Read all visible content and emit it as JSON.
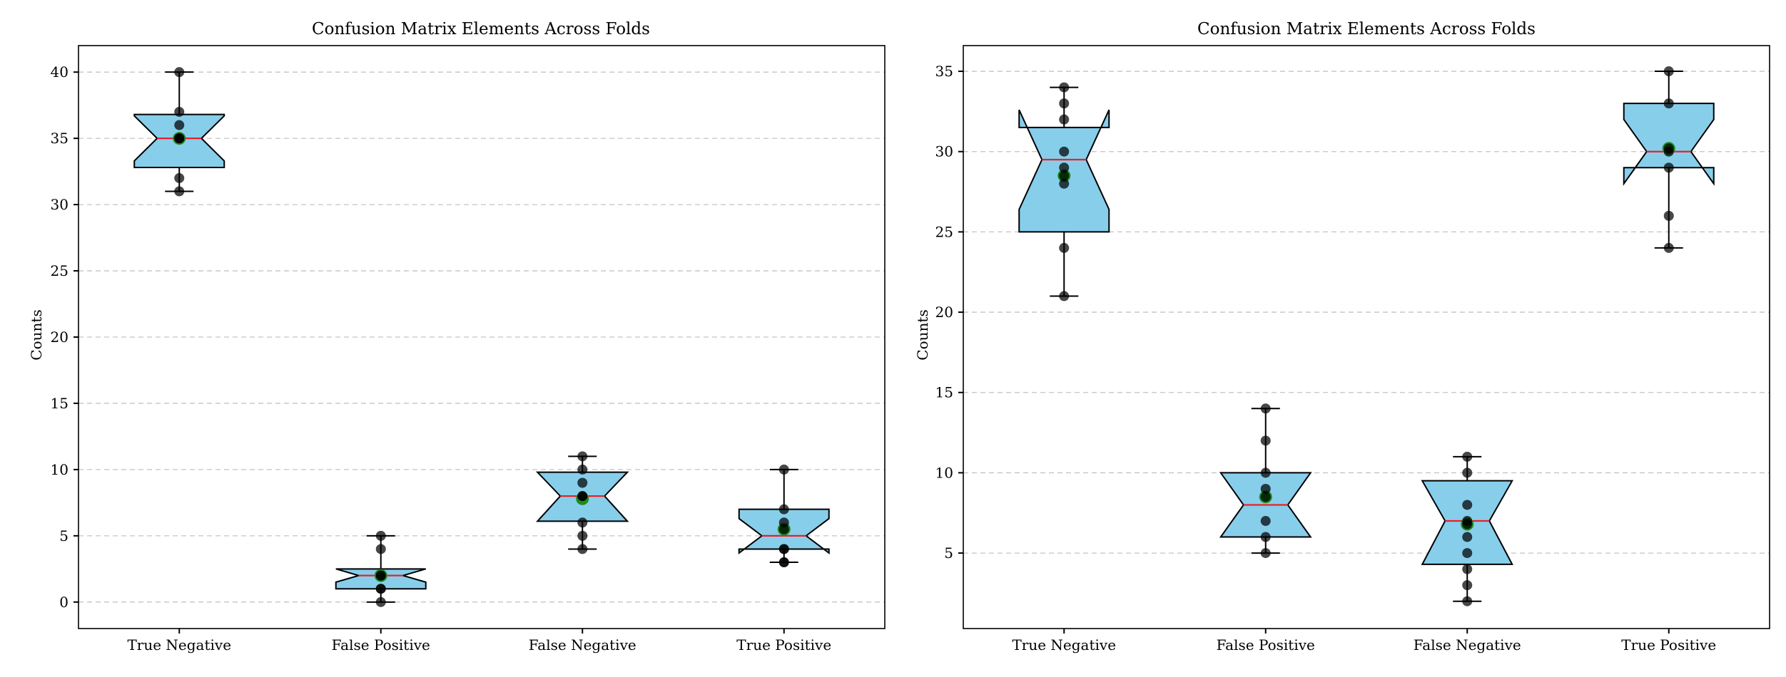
{
  "chart_data": [
    {
      "type": "box",
      "title": "Confusion Matrix Elements Across Folds",
      "xlabel": "",
      "ylabel": "Counts",
      "ylim": [
        -2,
        42
      ],
      "yticks": [
        0,
        5,
        10,
        15,
        20,
        25,
        30,
        35,
        40
      ],
      "grid": "y-dashed",
      "categories": [
        "True Negative",
        "False Positive",
        "False Negative",
        "True Positive"
      ],
      "boxes": [
        {
          "category": "True Negative",
          "q1": 32.8,
          "median": 35,
          "q3": 36.8,
          "whisker_low": 31,
          "whisker_high": 40,
          "notch_low": 33.3,
          "notch_high": 36.7,
          "mean": 35,
          "points": [
            40,
            37,
            36,
            35,
            35,
            35,
            32,
            31
          ]
        },
        {
          "category": "False Positive",
          "q1": 1,
          "median": 2,
          "q3": 2.5,
          "whisker_low": 0,
          "whisker_high": 5,
          "notch_low": 1.5,
          "notch_high": 2.5,
          "mean": 2,
          "points": [
            5,
            4,
            2,
            2,
            1,
            1,
            0
          ]
        },
        {
          "category": "False Negative",
          "q1": 6.1,
          "median": 8,
          "q3": 9.8,
          "whisker_low": 4,
          "whisker_high": 11,
          "notch_low": 6.1,
          "notch_high": 9.8,
          "mean": 7.8,
          "points": [
            11,
            10,
            9,
            8,
            8,
            6,
            5,
            4
          ]
        },
        {
          "category": "True Positive",
          "q1": 4,
          "median": 5,
          "q3": 7,
          "whisker_low": 3,
          "whisker_high": 10,
          "notch_low": 3.7,
          "notch_high": 6.3,
          "mean": 5.5,
          "points": [
            10,
            7,
            6,
            5.5,
            4,
            4,
            3,
            3
          ]
        }
      ]
    },
    {
      "type": "box",
      "title": "Confusion Matrix Elements Across Folds",
      "xlabel": "",
      "ylabel": "Counts",
      "ylim": [
        0.3,
        36.6
      ],
      "yticks": [
        5,
        10,
        15,
        20,
        25,
        30,
        35
      ],
      "grid": "y-dashed",
      "categories": [
        "True Negative",
        "False Positive",
        "False Negative",
        "True Positive"
      ],
      "boxes": [
        {
          "category": "True Negative",
          "q1": 25,
          "median": 29.5,
          "q3": 31.5,
          "whisker_low": 21,
          "whisker_high": 34,
          "notch_low": 26.4,
          "notch_high": 32.6,
          "mean": 28.5,
          "points": [
            34,
            33,
            32,
            30,
            29,
            28.5,
            28,
            24,
            21
          ]
        },
        {
          "category": "False Positive",
          "q1": 6,
          "median": 8,
          "q3": 10,
          "whisker_low": 5,
          "whisker_high": 14,
          "notch_low": 6,
          "notch_high": 10,
          "mean": 8.5,
          "points": [
            14,
            12,
            10,
            9,
            8.5,
            7,
            6,
            5
          ]
        },
        {
          "category": "False Negative",
          "q1": 4.3,
          "median": 7,
          "q3": 9.5,
          "whisker_low": 2,
          "whisker_high": 11,
          "notch_low": 4.3,
          "notch_high": 9.5,
          "mean": 6.8,
          "points": [
            11,
            10,
            8,
            7,
            6.8,
            6,
            5,
            4,
            3,
            2
          ]
        },
        {
          "category": "True Positive",
          "q1": 29,
          "median": 30,
          "q3": 33,
          "whisker_low": 24,
          "whisker_high": 35,
          "notch_low": 28,
          "notch_high": 32,
          "mean": 30.2,
          "points": [
            35,
            33,
            30.2,
            30,
            29,
            26,
            24
          ]
        }
      ]
    }
  ]
}
